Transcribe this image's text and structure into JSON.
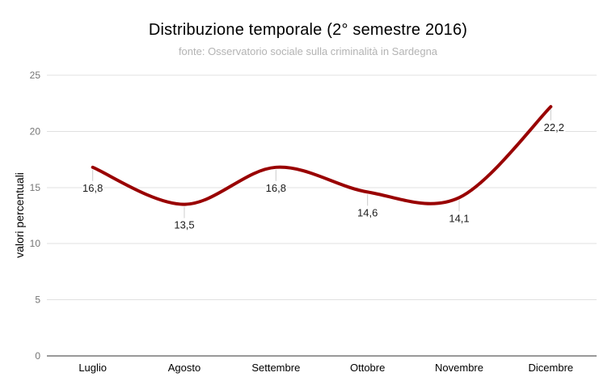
{
  "header": {
    "title": "Distribuzione temporale (2° semestre 2016)",
    "subtitle": "fonte: Osservatorio sociale sulla criminalità in Sardegna"
  },
  "chart_data": {
    "type": "line",
    "smooth": true,
    "title": "Distribuzione temporale (2° semestre 2016)",
    "subtitle": "fonte: Osservatorio sociale sulla criminalità in Sardegna",
    "categories": [
      "Luglio",
      "Agosto",
      "Settembre",
      "Ottobre",
      "Novembre",
      "Dicembre"
    ],
    "values": [
      16.8,
      13.5,
      16.8,
      14.6,
      14.1,
      22.2
    ],
    "value_labels": [
      "16,8",
      "13,5",
      "16,8",
      "14,6",
      "14,1",
      "22,2"
    ],
    "xlabel": "",
    "ylabel": "valori percentuali",
    "ylim": [
      0,
      25
    ],
    "yticks": [
      0,
      5,
      10,
      15,
      20,
      25
    ],
    "grid": true,
    "legend_position": "none"
  },
  "colors": {
    "line": "#990000",
    "grid": "#e0e0e0",
    "axis": "#333333",
    "y_tick_label": "#757575",
    "x_tick_label": "#000000",
    "data_label": "#1a1a1a",
    "label_tick": "#cccccc",
    "background": "#ffffff"
  }
}
